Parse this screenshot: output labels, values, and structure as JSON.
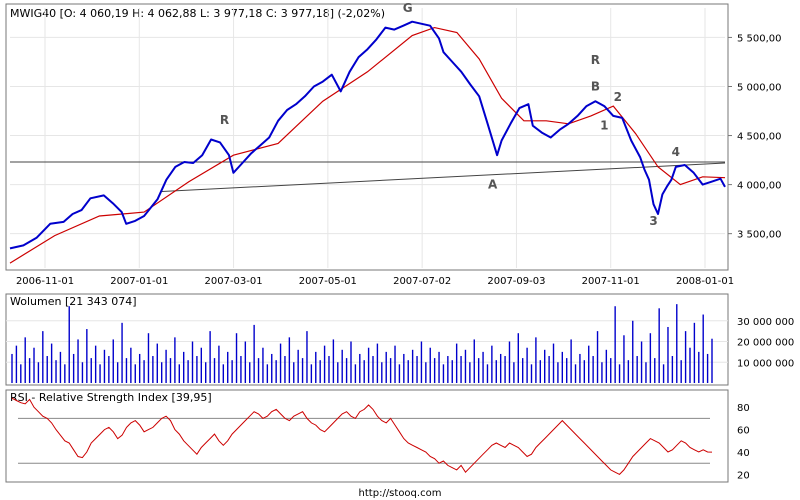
{
  "chart_data": [
    {
      "type": "line",
      "title": "MWIG40 [O: 4 060,19  H: 4 062,88  L: 3 977,18  C: 3 977,18] (-2,02%)",
      "xlabel": "",
      "ylabel": "",
      "x_ticks": [
        "2006-11-01",
        "2007-01-01",
        "2007-03-01",
        "2007-05-01",
        "2007-07-02",
        "2007-09-03",
        "2007-11-01",
        "2008-01-01"
      ],
      "y_ticks": [
        "3 500,00",
        "4 000,00",
        "4 500,00",
        "5 000,00",
        "5 500,00"
      ],
      "ylim": [
        3150,
        5800
      ],
      "grid": true,
      "colors": {
        "price": "#0000cc",
        "moving_average": "#cc0000"
      },
      "price_path": [
        [
          0,
          3350
        ],
        [
          3,
          3380
        ],
        [
          6,
          3460
        ],
        [
          9,
          3600
        ],
        [
          12,
          3620
        ],
        [
          14,
          3700
        ],
        [
          16,
          3740
        ],
        [
          18,
          3860
        ],
        [
          21,
          3890
        ],
        [
          23,
          3810
        ],
        [
          25,
          3720
        ],
        [
          26,
          3600
        ],
        [
          28,
          3630
        ],
        [
          30,
          3680
        ],
        [
          33,
          3850
        ],
        [
          35,
          4050
        ],
        [
          37,
          4180
        ],
        [
          39,
          4230
        ],
        [
          41,
          4220
        ],
        [
          43,
          4300
        ],
        [
          45,
          4460
        ],
        [
          47,
          4430
        ],
        [
          49,
          4300
        ],
        [
          50,
          4120
        ],
        [
          52,
          4220
        ],
        [
          54,
          4320
        ],
        [
          56,
          4400
        ],
        [
          58,
          4480
        ],
        [
          60,
          4650
        ],
        [
          62,
          4760
        ],
        [
          64,
          4820
        ],
        [
          66,
          4900
        ],
        [
          68,
          5000
        ],
        [
          70,
          5050
        ],
        [
          72,
          5120
        ],
        [
          74,
          4950
        ],
        [
          76,
          5150
        ],
        [
          78,
          5300
        ],
        [
          80,
          5380
        ],
        [
          82,
          5480
        ],
        [
          84,
          5600
        ],
        [
          86,
          5580
        ],
        [
          88,
          5620
        ],
        [
          90,
          5660
        ],
        [
          92,
          5640
        ],
        [
          94,
          5620
        ],
        [
          96,
          5490
        ],
        [
          97,
          5350
        ],
        [
          99,
          5250
        ],
        [
          101,
          5150
        ],
        [
          103,
          5020
        ],
        [
          105,
          4900
        ],
        [
          107,
          4600
        ],
        [
          109,
          4300
        ],
        [
          110,
          4450
        ],
        [
          112,
          4620
        ],
        [
          114,
          4780
        ],
        [
          116,
          4820
        ],
        [
          117,
          4600
        ],
        [
          119,
          4530
        ],
        [
          121,
          4480
        ],
        [
          123,
          4560
        ],
        [
          125,
          4620
        ],
        [
          127,
          4700
        ],
        [
          129,
          4800
        ],
        [
          131,
          4850
        ],
        [
          133,
          4800
        ],
        [
          135,
          4700
        ],
        [
          137,
          4680
        ],
        [
          139,
          4450
        ],
        [
          141,
          4280
        ],
        [
          142,
          4150
        ],
        [
          143,
          4050
        ],
        [
          144,
          3800
        ],
        [
          145,
          3700
        ],
        [
          146,
          3900
        ],
        [
          147,
          3980
        ],
        [
          148,
          4050
        ],
        [
          149,
          4180
        ],
        [
          151,
          4200
        ],
        [
          153,
          4120
        ],
        [
          155,
          4000
        ],
        [
          157,
          4030
        ],
        [
          159,
          4060
        ],
        [
          160,
          3977
        ]
      ],
      "moving_average_path": [
        [
          0,
          3200
        ],
        [
          10,
          3480
        ],
        [
          20,
          3680
        ],
        [
          30,
          3720
        ],
        [
          40,
          4030
        ],
        [
          50,
          4300
        ],
        [
          60,
          4420
        ],
        [
          70,
          4850
        ],
        [
          80,
          5150
        ],
        [
          90,
          5520
        ],
        [
          95,
          5600
        ],
        [
          100,
          5550
        ],
        [
          105,
          5280
        ],
        [
          110,
          4880
        ],
        [
          115,
          4650
        ],
        [
          120,
          4650
        ],
        [
          125,
          4620
        ],
        [
          130,
          4700
        ],
        [
          135,
          4800
        ],
        [
          140,
          4520
        ],
        [
          145,
          4180
        ],
        [
          150,
          4000
        ],
        [
          155,
          4080
        ],
        [
          160,
          4070
        ]
      ],
      "resistance_line": {
        "x0": 0,
        "x1": 160,
        "y": 4230
      },
      "trend_line": {
        "x0": 34,
        "y0": 3930,
        "x1": 160,
        "y1": 4220
      },
      "wave_labels": [
        {
          "text": "R",
          "x": 48,
          "y": 4620
        },
        {
          "text": "G",
          "x": 89,
          "y": 5760
        },
        {
          "text": "A",
          "x": 108,
          "y": 3960
        },
        {
          "text": "R",
          "x": 131,
          "y": 5230
        },
        {
          "text": "B",
          "x": 131,
          "y": 4960
        },
        {
          "text": "2",
          "x": 136,
          "y": 4850
        },
        {
          "text": "1",
          "x": 133,
          "y": 4560
        },
        {
          "text": "4",
          "x": 149,
          "y": 4290
        },
        {
          "text": "3",
          "x": 144,
          "y": 3590
        }
      ]
    },
    {
      "type": "bar",
      "title": "Wolumen [21 343 074]",
      "y_ticks": [
        "10 000 000",
        "20 000 000",
        "30 000 000"
      ],
      "ylim": [
        0,
        40000000
      ],
      "grid": true,
      "colors": {
        "bars": "#0000cc"
      },
      "values": [
        14000000,
        18000000,
        9000000,
        22000000,
        12000000,
        17000000,
        10000000,
        25000000,
        13000000,
        19000000,
        11000000,
        15000000,
        9000000,
        37000000,
        14000000,
        21000000,
        10000000,
        26000000,
        12000000,
        18000000,
        9000000,
        16000000,
        13000000,
        21000000,
        10000000,
        29000000,
        12000000,
        17000000,
        9000000,
        14000000,
        11000000,
        24000000,
        13000000,
        19000000,
        10000000,
        16000000,
        12000000,
        22000000,
        9000000,
        15000000,
        11000000,
        20000000,
        13000000,
        17000000,
        10000000,
        25000000,
        12000000,
        18000000,
        9000000,
        15000000,
        11000000,
        24000000,
        13000000,
        20000000,
        10000000,
        28000000,
        12000000,
        17000000,
        9000000,
        14000000,
        11000000,
        19000000,
        13000000,
        22000000,
        10000000,
        16000000,
        12000000,
        25000000,
        9000000,
        15000000,
        11000000,
        18000000,
        13000000,
        21000000,
        10000000,
        16000000,
        12000000,
        20000000,
        9000000,
        14000000,
        11000000,
        17000000,
        13000000,
        19000000,
        10000000,
        15000000,
        12000000,
        18000000,
        9000000,
        14000000,
        11000000,
        16000000,
        13000000,
        20000000,
        10000000,
        17000000,
        12000000,
        15000000,
        9000000,
        13000000,
        11000000,
        19000000,
        13000000,
        16000000,
        10000000,
        21000000,
        12000000,
        15000000,
        9000000,
        18000000,
        11000000,
        14000000,
        13000000,
        20000000,
        10000000,
        24000000,
        12000000,
        17000000,
        9000000,
        22000000,
        11000000,
        16000000,
        13000000,
        19000000,
        10000000,
        15000000,
        12000000,
        21000000,
        9000000,
        14000000,
        11000000,
        18000000,
        13000000,
        25000000,
        10000000,
        16000000,
        12000000,
        37000000,
        9000000,
        23000000,
        11000000,
        30000000,
        13000000,
        20000000,
        10000000,
        24000000,
        12000000,
        36000000,
        9000000,
        27000000,
        13000000,
        38000000,
        11000000,
        25000000,
        17000000,
        29000000,
        15000000,
        33000000,
        14000000,
        21343074
      ]
    },
    {
      "type": "line",
      "title": "RSI - Relative Strength Index [39,95]",
      "y_ticks": [
        "20",
        "40",
        "60",
        "80"
      ],
      "ylim": [
        15,
        90
      ],
      "reference_lines": [
        30,
        70
      ],
      "grid": true,
      "colors": {
        "line": "#cc0000"
      },
      "values": [
        88,
        86,
        84,
        83,
        87,
        80,
        76,
        72,
        70,
        66,
        60,
        55,
        50,
        48,
        42,
        36,
        35,
        40,
        48,
        52,
        56,
        60,
        62,
        58,
        52,
        55,
        62,
        66,
        68,
        64,
        58,
        60,
        62,
        66,
        70,
        72,
        68,
        60,
        56,
        50,
        46,
        42,
        38,
        44,
        48,
        52,
        56,
        50,
        46,
        50,
        56,
        60,
        64,
        68,
        72,
        76,
        74,
        70,
        72,
        76,
        78,
        74,
        70,
        68,
        72,
        74,
        76,
        70,
        66,
        64,
        60,
        58,
        62,
        66,
        70,
        74,
        76,
        72,
        70,
        76,
        78,
        82,
        78,
        72,
        68,
        66,
        70,
        64,
        58,
        52,
        48,
        46,
        44,
        42,
        40,
        36,
        34,
        30,
        32,
        28,
        26,
        24,
        28,
        22,
        26,
        30,
        34,
        38,
        42,
        46,
        48,
        46,
        44,
        48,
        46,
        44,
        40,
        36,
        38,
        44,
        48,
        52,
        56,
        60,
        64,
        68,
        64,
        60,
        56,
        52,
        48,
        44,
        40,
        36,
        32,
        28,
        24,
        22,
        20,
        24,
        30,
        36,
        40,
        44,
        48,
        52,
        50,
        48,
        44,
        40,
        42,
        46,
        50,
        48,
        44,
        42,
        40,
        42,
        40,
        39.95
      ]
    }
  ],
  "footer": "http://stooq.com"
}
